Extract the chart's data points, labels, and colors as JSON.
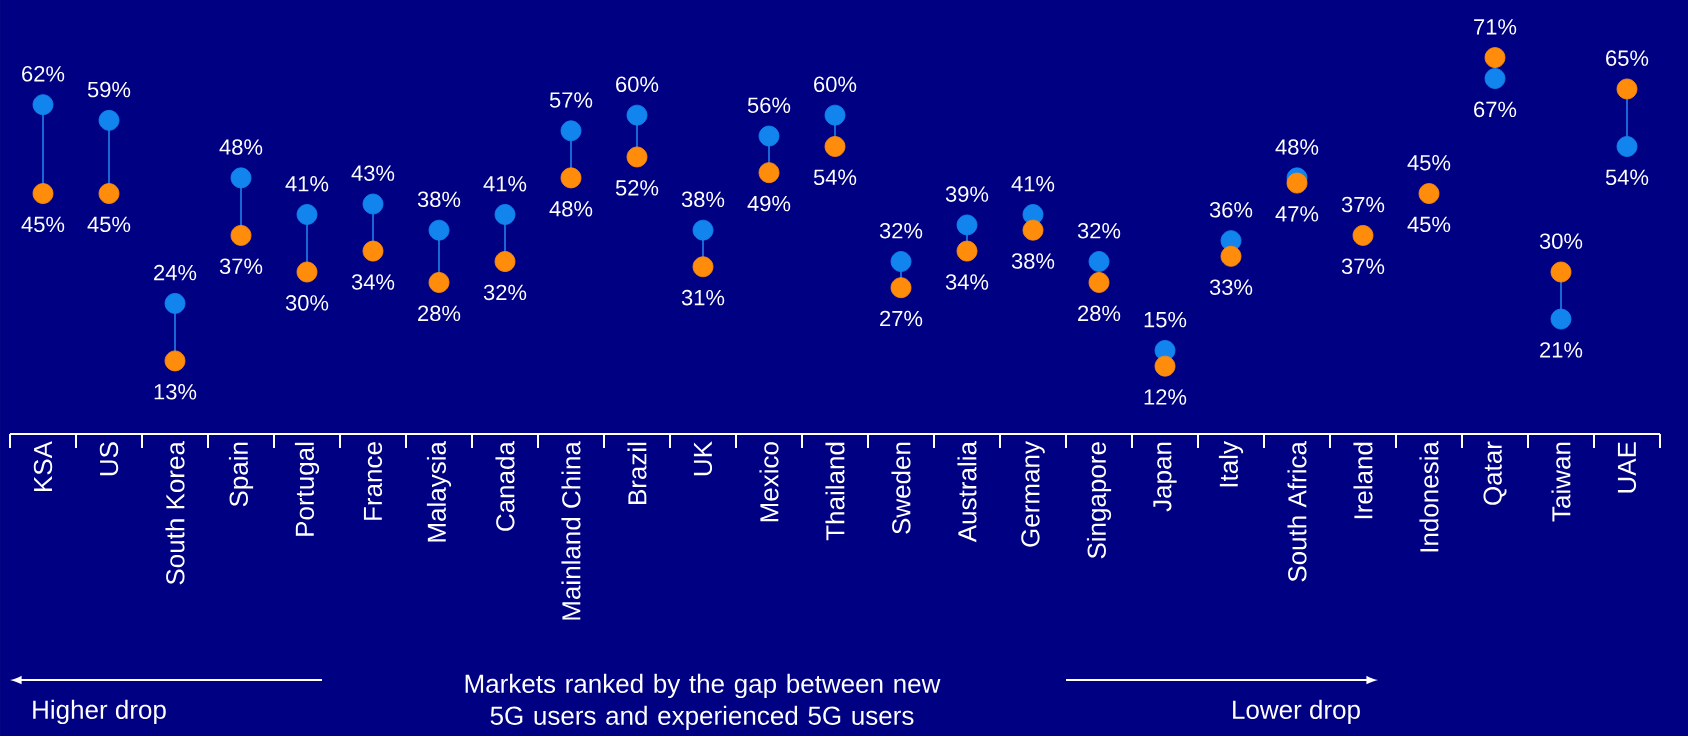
{
  "chart_data": {
    "type": "scatter",
    "xlabel": "Markets ranked by the gap between new 5G users and experienced 5G users",
    "categories": [
      "KSA",
      "US",
      "South Korea",
      "Spain",
      "Portugal",
      "France",
      "Malaysia",
      "Canada",
      "Mainland China",
      "Brazil",
      "UK",
      "Mexico",
      "Thailand",
      "Sweden",
      "Australia",
      "Germany",
      "Singapore",
      "Japan",
      "Italy",
      "South Africa",
      "Ireland",
      "Indonesia",
      "Qatar",
      "Taiwan",
      "UAE"
    ],
    "marker": "circle",
    "series": [
      {
        "color": "#1284EE",
        "values": [
          62,
          59,
          24,
          48,
          41,
          43,
          38,
          41,
          57,
          60,
          38,
          56,
          60,
          32,
          39,
          41,
          32,
          15,
          36,
          48,
          null,
          null,
          67,
          21,
          54
        ],
        "value_labels": [
          "62%",
          "59%",
          "24%",
          "48%",
          "41%",
          "43%",
          "38%",
          "41%",
          "57%",
          "60%",
          "38%",
          "56%",
          "60%",
          "32%",
          "39%",
          "41%",
          "32%",
          "15%",
          "36%",
          "48%",
          null,
          null,
          "67%",
          "21%",
          "54%"
        ]
      },
      {
        "color": "#FF8C0A",
        "values": [
          45,
          45,
          13,
          37,
          30,
          34,
          28,
          32,
          48,
          52,
          31,
          49,
          54,
          27,
          34,
          38,
          28,
          12,
          33,
          47,
          37,
          45,
          71,
          30,
          65
        ],
        "value_labels": [
          "45%",
          "45%",
          "13%",
          "37%",
          "30%",
          "34%",
          "28%",
          "32%",
          "48%",
          "52%",
          "31%",
          "49%",
          "54%",
          "27%",
          "34%",
          "38%",
          "28%",
          "12%",
          "33%",
          "47%",
          "37%",
          "45%",
          "71%",
          "30%",
          "65%"
        ]
      }
    ],
    "annotations": [
      "Higher drop",
      "Lower drop",
      {
        "text": "37%",
        "x": "Ireland",
        "y": 37
      },
      {
        "text": "45%",
        "x": "Indonesia",
        "y": 45
      }
    ]
  }
}
